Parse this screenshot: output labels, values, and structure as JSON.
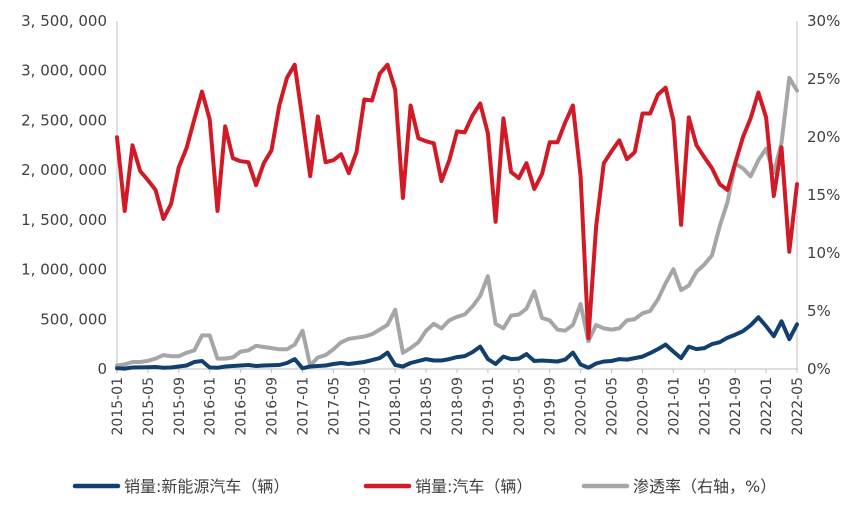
{
  "chart_data": {
    "type": "line",
    "x": [
      "2015-01",
      "2015-02",
      "2015-03",
      "2015-04",
      "2015-05",
      "2015-06",
      "2015-07",
      "2015-08",
      "2015-09",
      "2015-10",
      "2015-11",
      "2015-12",
      "2016-01",
      "2016-02",
      "2016-03",
      "2016-04",
      "2016-05",
      "2016-06",
      "2016-07",
      "2016-08",
      "2016-09",
      "2016-10",
      "2016-11",
      "2016-12",
      "2017-01",
      "2017-02",
      "2017-03",
      "2017-04",
      "2017-05",
      "2017-06",
      "2017-07",
      "2017-08",
      "2017-09",
      "2017-10",
      "2017-11",
      "2017-12",
      "2018-01",
      "2018-02",
      "2018-03",
      "2018-04",
      "2018-05",
      "2018-06",
      "2018-07",
      "2018-08",
      "2018-09",
      "2018-10",
      "2018-11",
      "2018-12",
      "2019-01",
      "2019-02",
      "2019-03",
      "2019-04",
      "2019-05",
      "2019-06",
      "2019-07",
      "2019-08",
      "2019-09",
      "2019-10",
      "2019-11",
      "2019-12",
      "2020-01",
      "2020-02",
      "2020-03",
      "2020-04",
      "2020-05",
      "2020-06",
      "2020-07",
      "2020-08",
      "2020-09",
      "2020-10",
      "2020-11",
      "2020-12",
      "2021-01",
      "2021-02",
      "2021-03",
      "2021-04",
      "2021-05",
      "2021-06",
      "2021-07",
      "2021-08",
      "2021-09",
      "2021-10",
      "2021-11",
      "2021-12",
      "2022-01",
      "2022-02",
      "2022-03",
      "2022-04",
      "2022-05"
    ],
    "xtick_labels": [
      "2015-01",
      "2015-05",
      "2015-09",
      "2016-01",
      "2016-05",
      "2016-09",
      "2017-01",
      "2017-05",
      "2017-09",
      "2018-01",
      "2018-05",
      "2018-09",
      "2019-01",
      "2019-05",
      "2019-09",
      "2020-01",
      "2020-05",
      "2020-09",
      "2021-01",
      "2021-05",
      "2021-09",
      "2022-01",
      "2022-05"
    ],
    "yticks_left": [
      "0",
      "500, 000",
      "1, 000, 000",
      "1, 500, 000",
      "2, 000, 000",
      "2, 500, 000",
      "3, 000, 000",
      "3, 500, 000"
    ],
    "yticks_right": [
      "0%",
      "5%",
      "10%",
      "15%",
      "20%",
      "25%",
      "30%"
    ],
    "ylim_left": [
      0,
      3500000
    ],
    "ylim_right": [
      0,
      30
    ],
    "series": [
      {
        "name": "销量:新能源汽车（辆）",
        "axis": "left",
        "color": "#12406e",
        "values": [
          8000,
          4000,
          15000,
          16000,
          18000,
          20000,
          12000,
          15000,
          25000,
          35000,
          70000,
          80000,
          15000,
          12000,
          25000,
          30000,
          35000,
          40000,
          30000,
          35000,
          38000,
          40000,
          60000,
          100000,
          7000,
          25000,
          30000,
          35000,
          50000,
          60000,
          50000,
          60000,
          70000,
          90000,
          110000,
          165000,
          40000,
          25000,
          60000,
          80000,
          100000,
          85000,
          85000,
          100000,
          120000,
          130000,
          170000,
          225000,
          100000,
          50000,
          125000,
          100000,
          105000,
          150000,
          80000,
          85000,
          80000,
          75000,
          95000,
          165000,
          45000,
          13000,
          55000,
          75000,
          80000,
          100000,
          95000,
          110000,
          125000,
          160000,
          200000,
          245000,
          175000,
          110000,
          225000,
          200000,
          210000,
          250000,
          270000,
          315000,
          345000,
          380000,
          440000,
          520000,
          430000,
          330000,
          480000,
          300000,
          450000
        ]
      },
      {
        "name": "销量:汽车（辆）",
        "axis": "left",
        "color": "#d11a26",
        "values": [
          2330000,
          1590000,
          2250000,
          1990000,
          1900000,
          1800000,
          1510000,
          1660000,
          2030000,
          2220000,
          2510000,
          2790000,
          2510000,
          1590000,
          2440000,
          2120000,
          2090000,
          2080000,
          1850000,
          2070000,
          2200000,
          2650000,
          2930000,
          3060000,
          2510000,
          1940000,
          2540000,
          2080000,
          2100000,
          2160000,
          1970000,
          2180000,
          2710000,
          2700000,
          2970000,
          3060000,
          2810000,
          1720000,
          2650000,
          2320000,
          2290000,
          2270000,
          1890000,
          2100000,
          2390000,
          2380000,
          2550000,
          2670000,
          2370000,
          1480000,
          2520000,
          1980000,
          1920000,
          2070000,
          1810000,
          1960000,
          2280000,
          2280000,
          2480000,
          2650000,
          1940000,
          310000,
          1430000,
          2070000,
          2190000,
          2300000,
          2110000,
          2180000,
          2570000,
          2570000,
          2760000,
          2830000,
          2500000,
          1450000,
          2530000,
          2250000,
          2130000,
          2020000,
          1860000,
          1800000,
          2070000,
          2330000,
          2520000,
          2780000,
          2530000,
          1740000,
          2230000,
          1180000,
          1860000
        ]
      },
      {
        "name": "渗透率（右轴，%）",
        "axis": "right",
        "color": "#a6a6a6",
        "values": [
          0.3,
          0.4,
          0.6,
          0.6,
          0.7,
          0.9,
          1.2,
          1.1,
          1.1,
          1.4,
          1.6,
          2.9,
          2.9,
          0.9,
          0.9,
          1.0,
          1.5,
          1.6,
          2.0,
          1.9,
          1.8,
          1.7,
          1.7,
          2.1,
          3.3,
          0.3,
          1.0,
          1.2,
          1.7,
          2.3,
          2.6,
          2.7,
          2.8,
          3.0,
          3.4,
          3.8,
          5.1,
          1.4,
          1.8,
          2.3,
          3.3,
          3.9,
          3.5,
          4.2,
          4.5,
          4.7,
          5.4,
          6.3,
          8.0,
          3.9,
          3.5,
          4.6,
          4.7,
          5.2,
          6.7,
          4.4,
          4.2,
          3.4,
          3.3,
          3.8,
          5.6,
          2.4,
          3.8,
          3.5,
          3.4,
          3.5,
          4.2,
          4.3,
          4.8,
          5.0,
          6.0,
          7.4,
          8.6,
          6.8,
          7.2,
          8.4,
          9.0,
          9.8,
          12.3,
          14.4,
          17.7,
          17.3,
          16.6,
          18.0,
          19.0,
          16.9,
          19.5,
          25.1,
          24.0
        ]
      }
    ],
    "legend_position": "bottom",
    "grid": false
  }
}
